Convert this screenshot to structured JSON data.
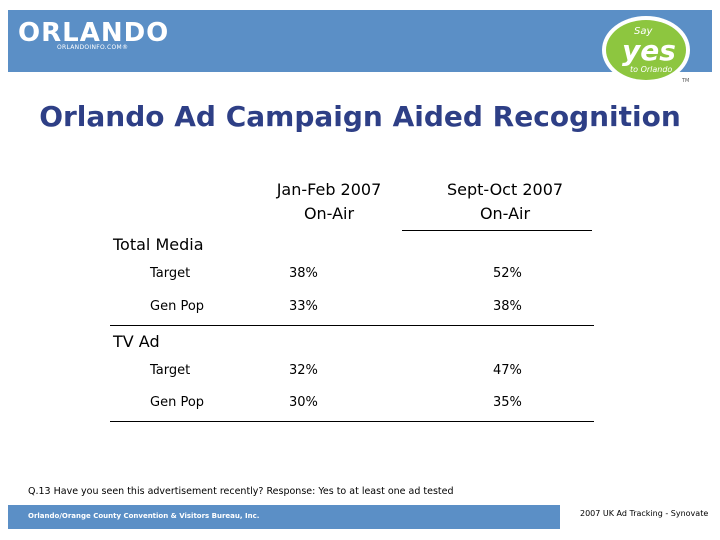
{
  "header": {
    "logo_text": "ORLANDO",
    "logo_sub": "ORLANDOINFO.COM®",
    "badge": {
      "say": "Say",
      "yes": "yes",
      "to": "to Orlando",
      "tm": "TM"
    }
  },
  "title": "Orlando Ad Campaign Aided Recognition",
  "columns": {
    "col1_line1": "Jan-Feb 2007",
    "col1_line2": "On-Air",
    "col2_line1": "Sept-Oct 2007",
    "col2_line2": "On-Air"
  },
  "sections": [
    {
      "label": "Total Media",
      "rows": [
        {
          "label": "Target",
          "v1": "38%",
          "v2": "52%"
        },
        {
          "label": "Gen Pop",
          "v1": "33%",
          "v2": "38%"
        }
      ]
    },
    {
      "label": "TV Ad",
      "rows": [
        {
          "label": "Target",
          "v1": "32%",
          "v2": "47%"
        },
        {
          "label": "Gen Pop",
          "v1": "30%",
          "v2": "35%"
        }
      ]
    }
  ],
  "note": "Q.13 Have you seen this advertisement recently? Response: Yes to at least one ad tested",
  "footer": {
    "left": "Orlando/Orange County Convention & Visitors Bureau, Inc.",
    "right": "2007 UK Ad Tracking - Synovate"
  },
  "colors": {
    "header_blue": "#5b8fc6",
    "title_navy": "#2e3f86",
    "badge_green": "#8dc63f"
  }
}
